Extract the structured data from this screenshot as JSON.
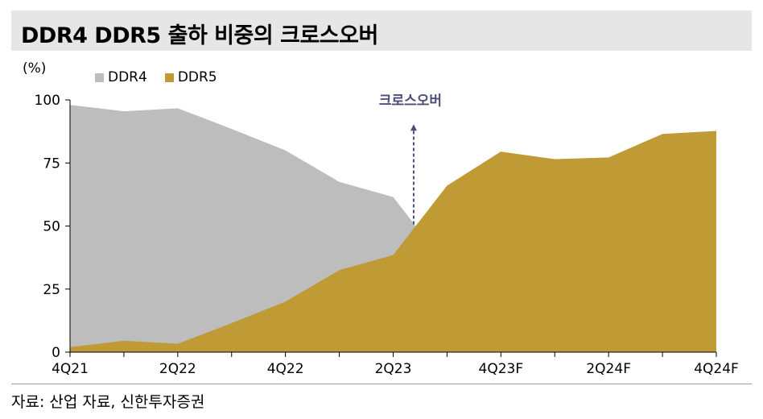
{
  "header": {
    "title": "DDR4 DDR5 출하 비중의 크로스오버"
  },
  "source": {
    "text": "자료: 산업 자료, 신한투자증권"
  },
  "colors": {
    "ddr4": "#bdbdbd",
    "ddr5": "#bf9a35",
    "arrow": "#4d4d7a",
    "title_bg": "#e6e6e6"
  },
  "chart_data": {
    "type": "area",
    "ylabel": "(%)",
    "ylim": [
      0,
      100
    ],
    "yticks": [
      0,
      25,
      50,
      75,
      100
    ],
    "categories": [
      "4Q21",
      "1Q22",
      "2Q22",
      "3Q22",
      "4Q22",
      "1Q23",
      "2Q23",
      "3Q23",
      "4Q23F",
      "1Q24F",
      "2Q24F",
      "3Q24F",
      "4Q24F"
    ],
    "tick_labels": [
      "4Q21",
      "",
      "2Q22",
      "",
      "4Q22",
      "",
      "2Q23",
      "",
      "4Q23F",
      "",
      "2Q24F",
      "",
      "4Q24F"
    ],
    "series": [
      {
        "name": "DDR4",
        "values": [
          98,
          95.5,
          96.7,
          88.5,
          80,
          67.5,
          61.5,
          34,
          20.5,
          23.5,
          22.8,
          13.5,
          12.3
        ]
      },
      {
        "name": "DDR5",
        "values": [
          2,
          4.5,
          3.3,
          11.5,
          20,
          32.5,
          38.5,
          66,
          79.5,
          76.5,
          77.2,
          86.5,
          87.7
        ]
      }
    ],
    "annotation": {
      "text": "크로스오버",
      "x_between": [
        "2Q23",
        "3Q23"
      ],
      "arrow_y_range": [
        50,
        90
      ]
    },
    "legend_position": "top-left"
  }
}
